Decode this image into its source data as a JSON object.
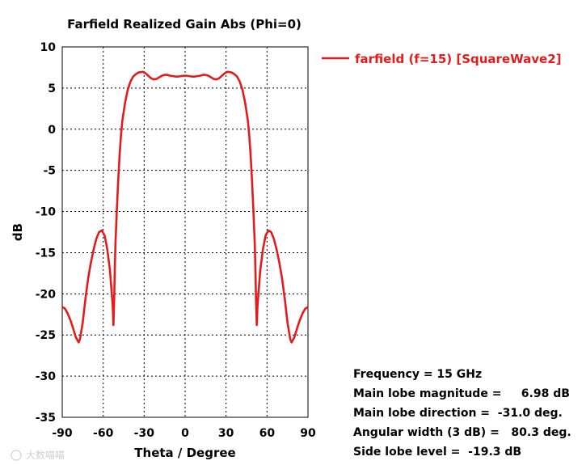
{
  "chart_data": {
    "type": "line",
    "title": "Farfield Realized Gain Abs (Phi=0)",
    "xlabel": "Theta / Degree",
    "ylabel": "dB",
    "xlim": [
      -90,
      90
    ],
    "ylim": [
      -35,
      10
    ],
    "xticks": [
      -90,
      -60,
      -30,
      0,
      30,
      60,
      90
    ],
    "yticks": [
      10,
      5,
      0,
      -5,
      -10,
      -15,
      -20,
      -25,
      -30,
      -35
    ],
    "grid": true,
    "legend_position": "right-top",
    "series": [
      {
        "name": "farfield (f=15) [SquareWave2]",
        "color": "#e31b1b",
        "points": [
          [
            -90,
            -21.6
          ],
          [
            -88,
            -21.8
          ],
          [
            -86,
            -22.4
          ],
          [
            -84,
            -23.2
          ],
          [
            -82,
            -24.2
          ],
          [
            -80,
            -25.3
          ],
          [
            -78,
            -25.9
          ],
          [
            -77,
            -25.5
          ],
          [
            -75,
            -23.5
          ],
          [
            -73,
            -20.6
          ],
          [
            -71,
            -18.1
          ],
          [
            -69,
            -16.2
          ],
          [
            -67,
            -14.6
          ],
          [
            -65,
            -13.3
          ],
          [
            -63,
            -12.5
          ],
          [
            -61,
            -12.3
          ],
          [
            -59,
            -12.9
          ],
          [
            -57,
            -14.6
          ],
          [
            -55,
            -17.2
          ],
          [
            -54,
            -19.4
          ],
          [
            -53,
            -21.5
          ],
          [
            -52.5,
            -23.8
          ],
          [
            -52,
            -21.0
          ],
          [
            -51.5,
            -17.0
          ],
          [
            -51,
            -13.8
          ],
          [
            -50,
            -9.8
          ],
          [
            -49,
            -6.2
          ],
          [
            -48,
            -3.2
          ],
          [
            -47,
            -0.8
          ],
          [
            -46,
            1.0
          ],
          [
            -44,
            3.2
          ],
          [
            -42,
            4.8
          ],
          [
            -40,
            5.8
          ],
          [
            -38,
            6.4
          ],
          [
            -36,
            6.7
          ],
          [
            -34,
            6.9
          ],
          [
            -32,
            6.95
          ],
          [
            -31,
            6.98
          ],
          [
            -29,
            6.8
          ],
          [
            -27,
            6.5
          ],
          [
            -25,
            6.2
          ],
          [
            -23,
            6.05
          ],
          [
            -21,
            6.1
          ],
          [
            -19,
            6.3
          ],
          [
            -17,
            6.5
          ],
          [
            -15,
            6.6
          ],
          [
            -13,
            6.6
          ],
          [
            -11,
            6.5
          ],
          [
            -9,
            6.45
          ],
          [
            -7,
            6.4
          ],
          [
            -5,
            6.4
          ],
          [
            -3,
            6.45
          ],
          [
            -1,
            6.5
          ],
          [
            0,
            6.5
          ],
          [
            1,
            6.5
          ],
          [
            3,
            6.45
          ],
          [
            5,
            6.4
          ],
          [
            7,
            6.4
          ],
          [
            9,
            6.45
          ],
          [
            11,
            6.5
          ],
          [
            13,
            6.6
          ],
          [
            15,
            6.6
          ],
          [
            17,
            6.5
          ],
          [
            19,
            6.3
          ],
          [
            21,
            6.1
          ],
          [
            23,
            6.05
          ],
          [
            25,
            6.2
          ],
          [
            27,
            6.5
          ],
          [
            29,
            6.8
          ],
          [
            31,
            6.98
          ],
          [
            32,
            6.95
          ],
          [
            34,
            6.9
          ],
          [
            36,
            6.7
          ],
          [
            38,
            6.4
          ],
          [
            40,
            5.8
          ],
          [
            42,
            4.8
          ],
          [
            44,
            3.2
          ],
          [
            46,
            1.0
          ],
          [
            47,
            -0.8
          ],
          [
            48,
            -3.2
          ],
          [
            49,
            -6.2
          ],
          [
            50,
            -9.8
          ],
          [
            51,
            -13.8
          ],
          [
            51.5,
            -17.0
          ],
          [
            52,
            -21.0
          ],
          [
            52.5,
            -23.8
          ],
          [
            53,
            -21.5
          ],
          [
            54,
            -19.4
          ],
          [
            55,
            -17.2
          ],
          [
            57,
            -14.6
          ],
          [
            59,
            -12.9
          ],
          [
            61,
            -12.3
          ],
          [
            63,
            -12.5
          ],
          [
            65,
            -13.3
          ],
          [
            67,
            -14.6
          ],
          [
            69,
            -16.2
          ],
          [
            71,
            -18.1
          ],
          [
            73,
            -20.6
          ],
          [
            75,
            -23.5
          ],
          [
            77,
            -25.5
          ],
          [
            78,
            -25.9
          ],
          [
            80,
            -25.3
          ],
          [
            82,
            -24.2
          ],
          [
            84,
            -23.2
          ],
          [
            86,
            -22.4
          ],
          [
            88,
            -21.8
          ],
          [
            90,
            -21.6
          ]
        ]
      }
    ],
    "annotations": [
      "Frequency = 15 GHz",
      "Main lobe magnitude =     6.98 dB",
      "Main lobe direction =  -31.0 deg.",
      "Angular width (3 dB) =   80.3 deg.",
      "Side lobe level =  -19.3 dB"
    ]
  },
  "watermark": "大数喵喵"
}
